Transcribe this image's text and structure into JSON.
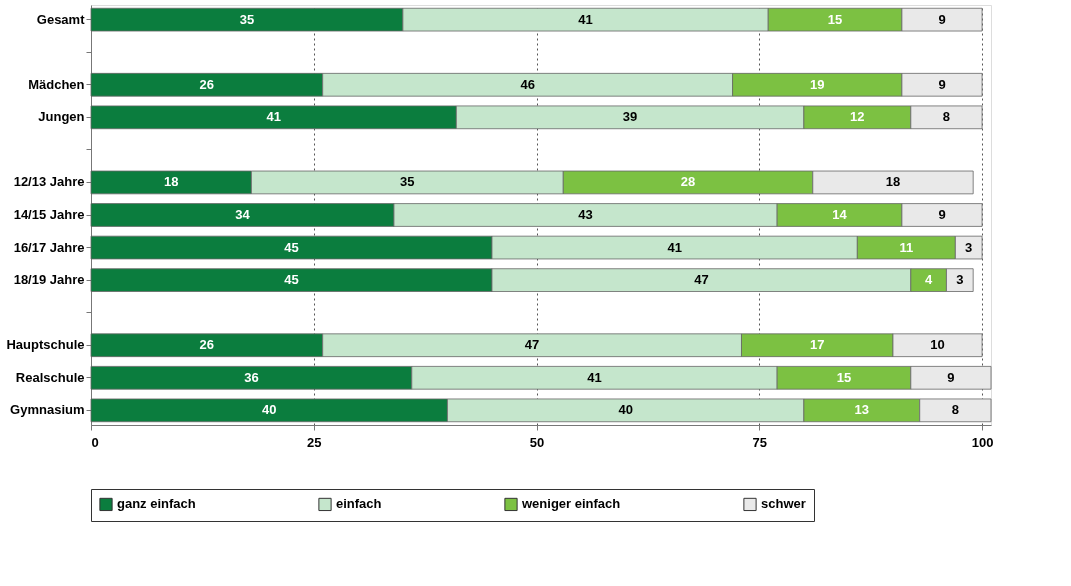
{
  "chart_data": {
    "type": "bar",
    "orientation": "horizontal",
    "stacked": true,
    "data_labels": true,
    "grid": "x",
    "legend": "bottom",
    "categories": [
      "Gesamt",
      null,
      "Mädchen",
      "Jungen",
      null,
      "12/13 Jahre",
      "14/15 Jahre",
      "16/17 Jahre",
      "18/19 Jahre",
      null,
      "Hauptschule",
      "Realschule",
      "Gymnasium"
    ],
    "xlim": [
      0,
      101
    ],
    "xticks": [
      0,
      25,
      50,
      75,
      100
    ],
    "series": [
      {
        "name": "ganz einfach",
        "color": "#0b7d3e",
        "values": [
          35,
          null,
          26,
          41,
          null,
          18,
          34,
          45,
          45,
          null,
          26,
          36,
          40
        ]
      },
      {
        "name": "einfach",
        "color": "#c5e6cc",
        "values": [
          41,
          null,
          46,
          39,
          null,
          35,
          43,
          41,
          47,
          null,
          47,
          41,
          40
        ]
      },
      {
        "name": "weniger einfach",
        "color": "#7cc142",
        "values": [
          15,
          null,
          19,
          12,
          null,
          28,
          14,
          11,
          4,
          null,
          17,
          15,
          13
        ]
      },
      {
        "name": "schwer",
        "color": "#e9e9e9",
        "values": [
          9,
          null,
          9,
          8,
          null,
          18,
          9,
          3,
          3,
          null,
          10,
          9,
          8
        ]
      }
    ]
  }
}
